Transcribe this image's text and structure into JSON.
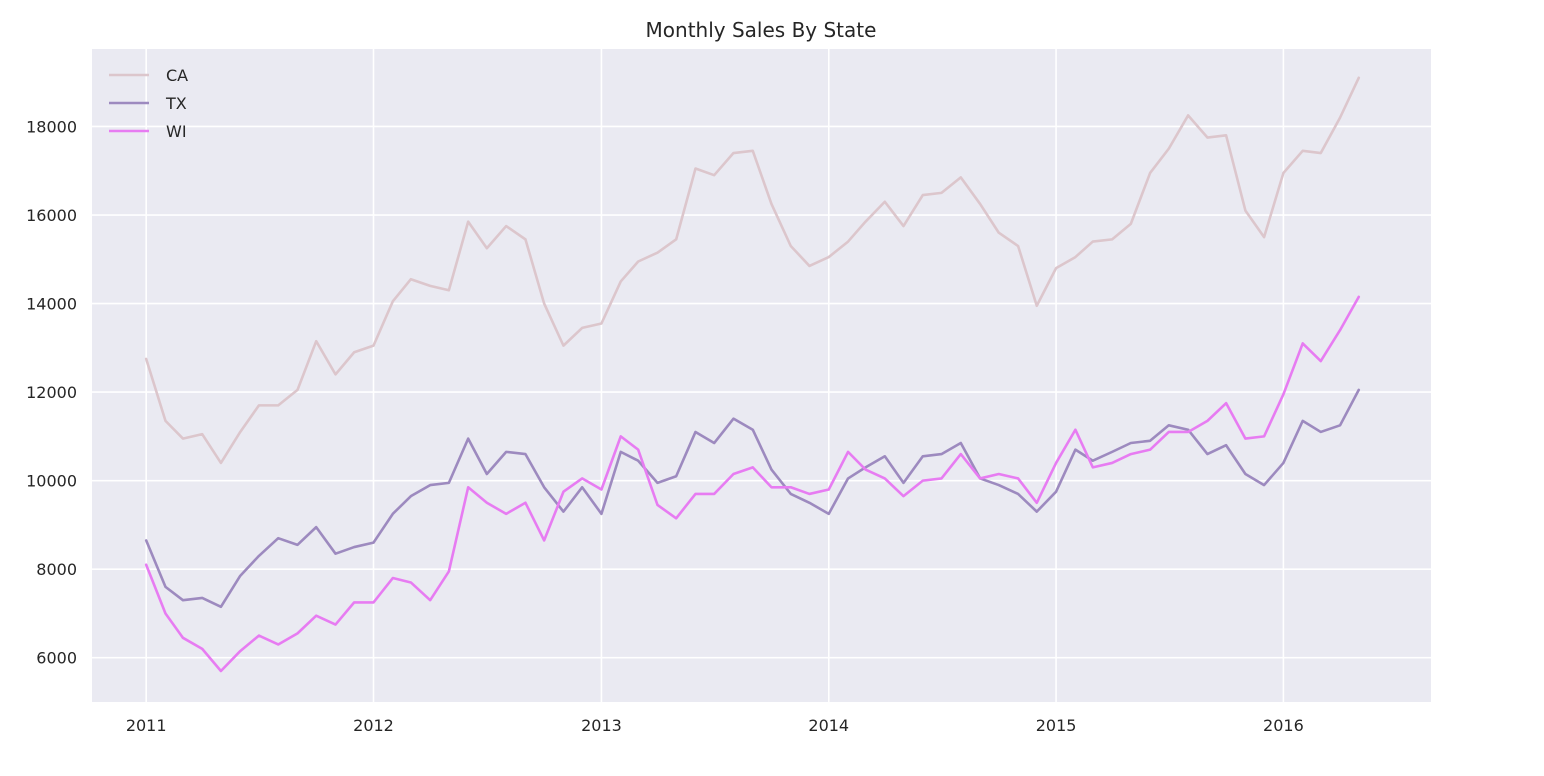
{
  "chart_data": {
    "type": "line",
    "title": "Monthly Sales By State",
    "xlabel": "",
    "ylabel": "",
    "xlim": [
      "2010-10-06",
      "2016-08-25"
    ],
    "ylim": [
      5000,
      19750
    ],
    "x_ticks": [
      "2011-01-01",
      "2012-01-01",
      "2013-01-01",
      "2014-01-01",
      "2015-01-01",
      "2016-01-01"
    ],
    "x_tick_labels": [
      "2011",
      "2012",
      "2013",
      "2014",
      "2015",
      "2016"
    ],
    "y_ticks": [
      6000,
      8000,
      10000,
      12000,
      14000,
      16000,
      18000
    ],
    "y_tick_labels": [
      "6000",
      "8000",
      "10000",
      "12000",
      "14000",
      "16000",
      "18000"
    ],
    "grid": true,
    "legend_position": "top-left",
    "background_color": "#eaeaf2",
    "x": [
      "2011-01",
      "2011-02",
      "2011-03",
      "2011-04",
      "2011-05",
      "2011-06",
      "2011-07",
      "2011-08",
      "2011-09",
      "2011-10",
      "2011-11",
      "2011-12",
      "2012-01",
      "2012-02",
      "2012-03",
      "2012-04",
      "2012-05",
      "2012-06",
      "2012-07",
      "2012-08",
      "2012-09",
      "2012-10",
      "2012-11",
      "2012-12",
      "2013-01",
      "2013-02",
      "2013-03",
      "2013-04",
      "2013-05",
      "2013-06",
      "2013-07",
      "2013-08",
      "2013-09",
      "2013-10",
      "2013-11",
      "2013-12",
      "2014-01",
      "2014-02",
      "2014-03",
      "2014-04",
      "2014-05",
      "2014-06",
      "2014-07",
      "2014-08",
      "2014-09",
      "2014-10",
      "2014-11",
      "2014-12",
      "2015-01",
      "2015-02",
      "2015-03",
      "2015-04",
      "2015-05",
      "2015-06",
      "2015-07",
      "2015-08",
      "2015-09",
      "2015-10",
      "2015-11",
      "2015-12",
      "2016-01",
      "2016-02",
      "2016-03",
      "2016-04",
      "2016-05"
    ],
    "series": [
      {
        "name": "CA",
        "color": "#dcc6cc",
        "values": [
          12750,
          11350,
          10950,
          11050,
          10400,
          11100,
          11700,
          11700,
          12050,
          13150,
          12400,
          12900,
          13050,
          14050,
          14550,
          14400,
          14300,
          15850,
          15250,
          15750,
          15450,
          14000,
          13050,
          13450,
          13550,
          14500,
          14950,
          15150,
          15450,
          17050,
          16900,
          17400,
          17450,
          16250,
          15300,
          14850,
          15050,
          15400,
          15850,
          16300,
          15750,
          16450,
          16500,
          16850,
          16250,
          15600,
          15300,
          13950,
          14800,
          15050,
          15400,
          15450,
          15800,
          16950,
          17500,
          18250,
          17750,
          17800,
          16100,
          15500,
          16950,
          17450,
          17400,
          18200,
          19100
        ]
      },
      {
        "name": "TX",
        "color": "#9d8abf",
        "values": [
          8650,
          7600,
          7300,
          7350,
          7150,
          7850,
          8300,
          8700,
          8550,
          8950,
          8350,
          8500,
          8600,
          9250,
          9650,
          9900,
          9950,
          10950,
          10150,
          10650,
          10600,
          9850,
          9300,
          9850,
          9250,
          10650,
          10450,
          9950,
          10100,
          11100,
          10850,
          11400,
          11150,
          10250,
          9700,
          9500,
          9250,
          10050,
          10300,
          10550,
          9950,
          10550,
          10600,
          10850,
          10050,
          9900,
          9700,
          9300,
          9750,
          10700,
          10450,
          10650,
          10850,
          10900,
          11250,
          11150,
          10600,
          10800,
          10150,
          9900,
          10400,
          11350,
          11100,
          11250,
          12050
        ]
      },
      {
        "name": "WI",
        "color": "#e77cf2",
        "values": [
          8100,
          7000,
          6450,
          6200,
          5700,
          6150,
          6500,
          6300,
          6550,
          6950,
          6750,
          7250,
          7250,
          7800,
          7700,
          7300,
          7950,
          9850,
          9500,
          9250,
          9500,
          8650,
          9750,
          10050,
          9800,
          11000,
          10700,
          9450,
          9150,
          9700,
          9700,
          10150,
          10300,
          9850,
          9850,
          9700,
          9800,
          10650,
          10250,
          10050,
          9650,
          10000,
          10050,
          10600,
          10050,
          10150,
          10050,
          9500,
          10400,
          11150,
          10300,
          10400,
          10600,
          10700,
          11100,
          11100,
          11350,
          11750,
          10950,
          11000,
          11950,
          13100,
          12700,
          13400,
          14150
        ]
      }
    ]
  }
}
